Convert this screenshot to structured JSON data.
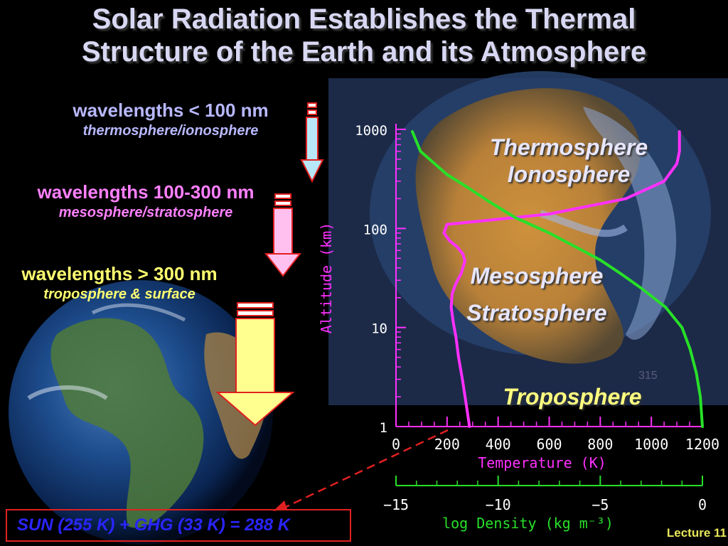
{
  "title_line1": "Solar Radiation Establishes the Thermal",
  "title_line2": "Structure of the Earth and its Atmosphere",
  "bands": [
    {
      "main": "wavelengths < 100 nm",
      "sub": "thermosphere/ionosphere",
      "color": "#b8b8ff"
    },
    {
      "main": "wavelengths 100-300 nm",
      "sub": "mesosphere/stratosphere",
      "color": "#ff80ff"
    },
    {
      "main": "wavelengths > 300 nm",
      "sub": "troposphere & surface",
      "color": "#ffff70"
    }
  ],
  "layers": {
    "thermosphere": "Thermosphere",
    "ionosphere": "Ionosphere",
    "mesosphere": "Mesosphere",
    "stratosphere": "Stratosphere",
    "troposphere": "Troposphere"
  },
  "equation": "SUN (255 K) + GHG (33 K) = 288 K",
  "footer": "Lecture 11",
  "image_number": "315",
  "chart_data": {
    "type": "line",
    "xlabel": "Temperature (K)",
    "ylabel": "Altitude (km)",
    "x2label": "log Density (kg m⁻³)",
    "yscale": "log",
    "ylim": [
      1,
      1000
    ],
    "xlim": [
      0,
      1200
    ],
    "x2lim": [
      -15,
      0
    ],
    "xticks": [
      0,
      200,
      400,
      600,
      800,
      1000,
      1200
    ],
    "x2ticks": [
      -15,
      -10,
      -5,
      0
    ],
    "yticks": [
      1,
      10,
      100,
      1000
    ],
    "xtick_labels": [
      "0",
      "200",
      "400",
      "600",
      "800",
      "1000",
      "1200"
    ],
    "x2tick_labels": [
      "−15",
      "−10",
      "−5",
      "0"
    ],
    "ytick_labels": [
      "1",
      "10",
      "100",
      "1000"
    ],
    "series": [
      {
        "color": "#ff30ff",
        "axis": "temperature",
        "x": [
          288,
          278,
          260,
          245,
          235,
          225,
          216,
          220,
          235,
          255,
          270,
          262,
          240,
          210,
          195,
          188,
          200,
          350,
          600,
          900,
          1050,
          1100,
          1110,
          1110
        ],
        "y": [
          1,
          1.5,
          3,
          5,
          8,
          11,
          16,
          22,
          28,
          35,
          47,
          55,
          65,
          75,
          85,
          90,
          110,
          120,
          140,
          200,
          300,
          450,
          600,
          950
        ]
      },
      {
        "color": "#28e028",
        "axis": "density",
        "x": [
          0.0,
          -0.1,
          -0.3,
          -0.6,
          -1.0,
          -1.8,
          -3.0,
          -4.0,
          -5.0,
          -6.2,
          -7.5,
          -9.2,
          -10.5,
          -11.5,
          -12.5,
          -13.8,
          -14.2
        ],
        "y": [
          1,
          2,
          3.5,
          6,
          10,
          16,
          25,
          35,
          48,
          65,
          90,
          130,
          190,
          260,
          350,
          600,
          950
        ]
      }
    ]
  }
}
